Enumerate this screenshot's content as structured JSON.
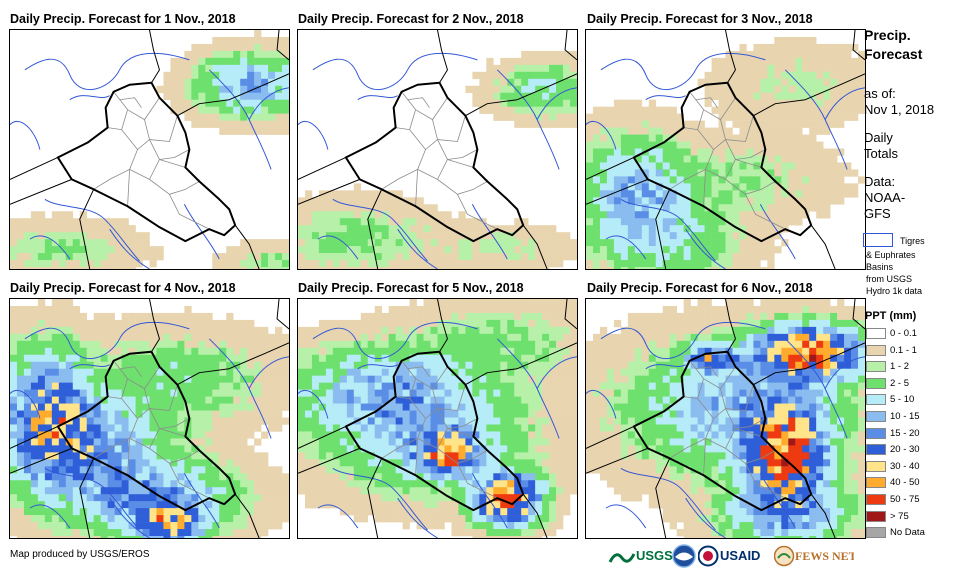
{
  "panels": [
    {
      "title": "Daily Precip. Forecast for 1 Nov., 2018",
      "day": 1
    },
    {
      "title": "Daily Precip. Forecast for 2 Nov., 2018",
      "day": 2
    },
    {
      "title": "Daily Precip. Forecast for 3 Nov., 2018",
      "day": 3
    },
    {
      "title": "Daily Precip. Forecast for 4 Nov., 2018",
      "day": 4
    },
    {
      "title": "Daily Precip. Forecast for 5 Nov., 2018",
      "day": 5
    },
    {
      "title": "Daily Precip. Forecast for 6 Nov., 2018",
      "day": 6
    }
  ],
  "sidebar": {
    "title_line1": "Precip.",
    "title_line2": "Forecast",
    "asof_line1": "as of:",
    "asof_line2": "Nov 1, 2018",
    "totals_line1": "Daily",
    "totals_line2": "Totals",
    "data_line1": "Data:",
    "data_line2": "NOAA-",
    "data_line3": "GFS",
    "basin_line1": "Tigres",
    "basin_line2": "& Euphrates",
    "basin_line3": "Basins",
    "basin_line4": "from USGS",
    "basin_line5": "Hydro 1k data",
    "basin_color": "#3358d6"
  },
  "legend": {
    "title": "PPT (mm)",
    "items": [
      {
        "label": "0 - 0.1",
        "color": "#ffffff"
      },
      {
        "label": "0.1 - 1",
        "color": "#e8d5b0"
      },
      {
        "label": "1 - 2",
        "color": "#b7f0a8"
      },
      {
        "label": "2 - 5",
        "color": "#6ee06e"
      },
      {
        "label": "5 - 10",
        "color": "#b6ecf7"
      },
      {
        "label": "10 - 15",
        "color": "#8bbcf0"
      },
      {
        "label": "15 - 20",
        "color": "#5a8ee6"
      },
      {
        "label": "20 - 30",
        "color": "#2f5fd8"
      },
      {
        "label": "30 - 40",
        "color": "#ffe48a"
      },
      {
        "label": "40 - 50",
        "color": "#ffab2e"
      },
      {
        "label": "50 - 75",
        "color": "#ee3a10"
      },
      {
        "label": "> 75",
        "color": "#a01818"
      },
      {
        "label": "No Data",
        "color": "#a6a6a6"
      }
    ]
  },
  "footer": {
    "credit": "Map produced by USGS/EROS"
  },
  "logos": {
    "usgs": "USGS",
    "usaid": "USAID",
    "fewsnet": "FEWS NET"
  }
}
